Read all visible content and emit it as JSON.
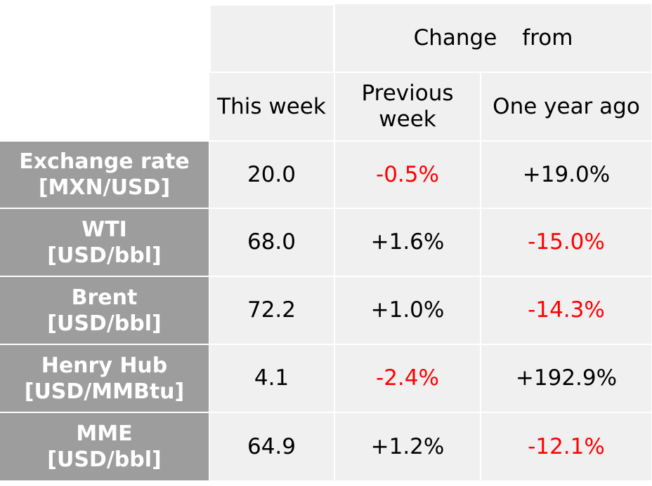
{
  "header": {
    "change_word_1": "Change",
    "change_word_2": "from",
    "col_this_week": "This week",
    "col_previous_week": "Previous\nweek",
    "col_one_year_ago": "One year ago"
  },
  "colors": {
    "label_bg": "#9d9d9d",
    "cell_bg": "#f0f0f0",
    "negative": "#ff0000",
    "positive": "#000000"
  },
  "rows": [
    {
      "label": "Exchange rate\n[MXN/USD]",
      "this_week": "20.0",
      "prev_week": "-0.5%",
      "year_ago": "+19.0%"
    },
    {
      "label": "WTI\n[USD/bbl]",
      "this_week": "68.0",
      "prev_week": "+1.6%",
      "year_ago": "-15.0%"
    },
    {
      "label": "Brent\n[USD/bbl]",
      "this_week": "72.2",
      "prev_week": "+1.0%",
      "year_ago": "-14.3%"
    },
    {
      "label": "Henry Hub\n[USD/MMBtu]",
      "this_week": "4.1",
      "prev_week": "-2.4%",
      "year_ago": "+192.9%"
    },
    {
      "label": "MME\n[USD/bbl]",
      "this_week": "64.9",
      "prev_week": "+1.2%",
      "year_ago": "-12.1%"
    }
  ]
}
